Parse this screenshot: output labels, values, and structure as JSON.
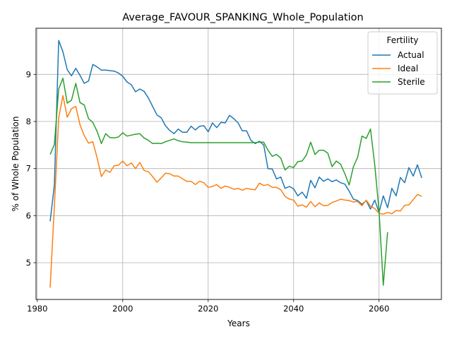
{
  "chart_data": {
    "type": "line",
    "title": "Average_FAVOUR_SPANKING_Whole_Population",
    "xlabel": "Years",
    "ylabel": "% of Whole Population",
    "xlim": [
      1979.7,
      2074.6
    ],
    "ylim": [
      4.22,
      9.98
    ],
    "xticks": [
      1980,
      2000,
      2020,
      2040,
      2060
    ],
    "yticks": [
      5,
      6,
      7,
      8,
      9
    ],
    "grid": true,
    "legend": {
      "title": "Fertility",
      "position": "top-right"
    },
    "series": [
      {
        "name": "Actual",
        "color": "#1f77b4",
        "x": [
          1983,
          1984,
          1985,
          1986,
          1987,
          1988,
          1989,
          1990,
          1991,
          1992,
          1993,
          1994,
          1995,
          1996,
          1997,
          1998,
          1999,
          2000,
          2001,
          2002,
          2003,
          2004,
          2005,
          2006,
          2007,
          2008,
          2009,
          2010,
          2011,
          2012,
          2013,
          2014,
          2015,
          2016,
          2017,
          2018,
          2019,
          2020,
          2021,
          2022,
          2023,
          2024,
          2025,
          2026,
          2027,
          2028,
          2029,
          2030,
          2031,
          2032,
          2033,
          2034,
          2035,
          2036,
          2037,
          2038,
          2039,
          2040,
          2041,
          2042,
          2043,
          2044,
          2045,
          2046,
          2047,
          2048,
          2049,
          2050,
          2051,
          2052,
          2053,
          2054,
          2055,
          2056,
          2057,
          2058,
          2059,
          2060,
          2061,
          2062,
          2063,
          2064,
          2065,
          2066,
          2067,
          2068,
          2069,
          2070
        ],
        "values": [
          5.88,
          6.65,
          9.72,
          9.48,
          9.1,
          8.97,
          9.13,
          8.98,
          8.81,
          8.86,
          9.21,
          9.16,
          9.09,
          9.09,
          9.08,
          9.07,
          9.03,
          8.96,
          8.84,
          8.78,
          8.63,
          8.69,
          8.64,
          8.5,
          8.32,
          8.14,
          8.08,
          7.91,
          7.81,
          7.74,
          7.84,
          7.77,
          7.77,
          7.9,
          7.82,
          7.9,
          7.91,
          7.78,
          7.97,
          7.87,
          7.98,
          7.97,
          8.13,
          8.06,
          7.97,
          7.8,
          7.8,
          7.6,
          7.53,
          7.58,
          7.5,
          7.0,
          6.99,
          6.78,
          6.82,
          6.58,
          6.62,
          6.57,
          6.42,
          6.5,
          6.37,
          6.75,
          6.59,
          6.82,
          6.73,
          6.78,
          6.72,
          6.76,
          6.7,
          6.67,
          6.52,
          6.35,
          6.32,
          6.24,
          6.32,
          6.14,
          6.33,
          6.07,
          6.42,
          6.17,
          6.58,
          6.42,
          6.81,
          6.7,
          7.02,
          6.84,
          7.08,
          6.8
        ]
      },
      {
        "name": "Ideal",
        "color": "#ff7f0e",
        "x": [
          1983,
          1984,
          1985,
          1986,
          1987,
          1988,
          1989,
          1990,
          1991,
          1992,
          1993,
          1994,
          1995,
          1996,
          1997,
          1998,
          1999,
          2000,
          2001,
          2002,
          2003,
          2004,
          2005,
          2006,
          2007,
          2008,
          2009,
          2010,
          2011,
          2012,
          2013,
          2014,
          2015,
          2016,
          2017,
          2018,
          2019,
          2020,
          2021,
          2022,
          2023,
          2024,
          2025,
          2026,
          2027,
          2028,
          2029,
          2030,
          2031,
          2032,
          2033,
          2034,
          2035,
          2036,
          2037,
          2038,
          2039,
          2040,
          2041,
          2042,
          2043,
          2044,
          2045,
          2046,
          2047,
          2048,
          2049,
          2050,
          2051,
          2052,
          2053,
          2054,
          2055,
          2056,
          2057,
          2058,
          2059,
          2060,
          2061,
          2062,
          2063,
          2064,
          2065,
          2066,
          2067,
          2068,
          2069,
          2070
        ],
        "values": [
          4.47,
          6.2,
          8.07,
          8.55,
          8.09,
          8.27,
          8.32,
          7.93,
          7.7,
          7.54,
          7.57,
          7.23,
          6.83,
          6.97,
          6.92,
          7.06,
          7.07,
          7.16,
          7.06,
          7.12,
          7.0,
          7.13,
          6.96,
          6.93,
          6.83,
          6.71,
          6.8,
          6.9,
          6.89,
          6.84,
          6.84,
          6.78,
          6.73,
          6.73,
          6.66,
          6.73,
          6.7,
          6.6,
          6.62,
          6.66,
          6.58,
          6.63,
          6.6,
          6.56,
          6.58,
          6.54,
          6.58,
          6.56,
          6.55,
          6.69,
          6.64,
          6.66,
          6.6,
          6.6,
          6.55,
          6.41,
          6.35,
          6.33,
          6.2,
          6.23,
          6.18,
          6.3,
          6.19,
          6.27,
          6.21,
          6.22,
          6.28,
          6.31,
          6.35,
          6.33,
          6.32,
          6.29,
          6.3,
          6.21,
          6.33,
          6.2,
          6.15,
          6.05,
          6.03,
          6.07,
          6.04,
          6.11,
          6.1,
          6.22,
          6.23,
          6.34,
          6.45,
          6.41
        ]
      },
      {
        "name": "Sterile",
        "color": "#2ca02c",
        "x": [
          1983,
          1984,
          1985,
          1986,
          1987,
          1988,
          1989,
          1990,
          1991,
          1992,
          1993,
          1994,
          1995,
          1996,
          1997,
          1998,
          1999,
          2000,
          2001,
          2002,
          2003,
          2004,
          2005,
          2006,
          2007,
          2008,
          2009,
          2010,
          2011,
          2012,
          2013,
          2014,
          2015,
          2016,
          2017,
          2018,
          2019,
          2020,
          2021,
          2022,
          2023,
          2024,
          2025,
          2026,
          2027,
          2028,
          2029,
          2030,
          2031,
          2032,
          2033,
          2034,
          2035,
          2036,
          2037,
          2038,
          2039,
          2040,
          2041,
          2042,
          2043,
          2044,
          2045,
          2046,
          2047,
          2048,
          2049,
          2050,
          2051,
          2052,
          2053,
          2054,
          2055,
          2056,
          2057,
          2058,
          2059,
          2060,
          2061,
          2062
        ],
        "values": [
          7.3,
          7.51,
          8.69,
          8.92,
          8.39,
          8.45,
          8.81,
          8.4,
          8.35,
          8.06,
          7.98,
          7.79,
          7.53,
          7.74,
          7.66,
          7.65,
          7.67,
          7.76,
          7.69,
          7.71,
          7.73,
          7.74,
          7.65,
          7.6,
          7.53,
          7.54,
          7.53,
          7.57,
          7.6,
          7.63,
          7.59,
          7.57,
          7.56,
          7.55,
          7.55,
          7.55,
          7.55,
          7.55,
          7.55,
          7.55,
          7.55,
          7.55,
          7.55,
          7.55,
          7.55,
          7.55,
          7.55,
          7.55,
          7.55,
          7.56,
          7.56,
          7.39,
          7.26,
          7.3,
          7.22,
          6.97,
          7.05,
          7.02,
          7.15,
          7.16,
          7.29,
          7.56,
          7.3,
          7.39,
          7.39,
          7.33,
          7.04,
          7.16,
          7.09,
          6.89,
          6.65,
          7.04,
          7.24,
          7.69,
          7.64,
          7.84,
          7.08,
          6.1,
          4.52,
          5.65
        ]
      }
    ]
  }
}
